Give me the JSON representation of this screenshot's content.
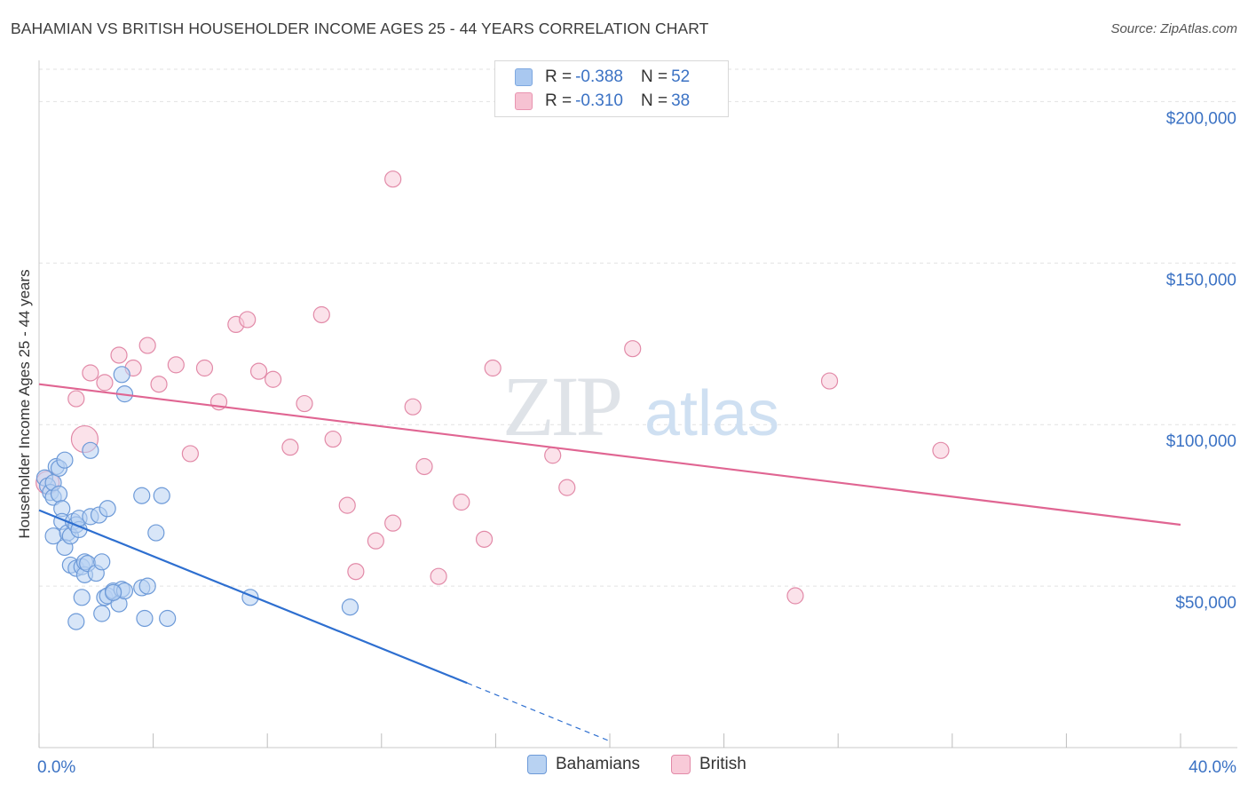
{
  "title": "BAHAMIAN VS BRITISH HOUSEHOLDER INCOME AGES 25 - 44 YEARS CORRELATION CHART",
  "source": "Source: ZipAtlas.com",
  "watermark": {
    "zip": "ZIP",
    "atlas": "atlas"
  },
  "legend": {
    "rows": [
      {
        "r_label": "R = ",
        "r_value": "-0.388",
        "n_label": "N = ",
        "n_value": "52",
        "color": "#a9c8f0",
        "border": "#7ea8e0"
      },
      {
        "r_label": "R = ",
        "r_value": "-0.310",
        "n_label": "N = ",
        "n_value": "38",
        "color": "#f6c2d2",
        "border": "#e994b0"
      }
    ]
  },
  "bottom_legend": [
    {
      "label": "Bahamians",
      "color": "#b8d2f2",
      "border": "#6d9ad8"
    },
    {
      "label": "British",
      "color": "#f8cad8",
      "border": "#e28aa8"
    }
  ],
  "chart_data": {
    "type": "scatter",
    "title": "BAHAMIAN VS BRITISH HOUSEHOLDER INCOME AGES 25 - 44 YEARS CORRELATION CHART",
    "xlabel": "",
    "ylabel": "Householder Income Ages 25 - 44 years",
    "xlim": [
      0,
      40
    ],
    "ylim": [
      0,
      210000
    ],
    "x_tick_labels": [
      "0.0%",
      "40.0%"
    ],
    "x_tick_values": [
      0,
      40
    ],
    "y_tick_labels": [
      "$50,000",
      "$100,000",
      "$150,000",
      "$200,000"
    ],
    "y_tick_values": [
      50000,
      100000,
      150000,
      200000
    ],
    "grid": true,
    "legend_position": "top-center",
    "series": [
      {
        "name": "Bahamians",
        "color": "#6d9ad8",
        "fill": "#b8d2f2",
        "points": [
          [
            0.2,
            83500
          ],
          [
            0.3,
            81000
          ],
          [
            0.4,
            79000
          ],
          [
            0.5,
            77500
          ],
          [
            0.5,
            82000
          ],
          [
            0.6,
            87000
          ],
          [
            0.7,
            86500
          ],
          [
            0.7,
            78500
          ],
          [
            0.8,
            74000
          ],
          [
            0.8,
            70000
          ],
          [
            0.9,
            62000
          ],
          [
            0.5,
            65500
          ],
          [
            0.9,
            89000
          ],
          [
            1.0,
            66500
          ],
          [
            1.1,
            56500
          ],
          [
            1.1,
            65500
          ],
          [
            1.2,
            70000
          ],
          [
            1.3,
            55500
          ],
          [
            1.3,
            69000
          ],
          [
            1.4,
            67500
          ],
          [
            1.4,
            71000
          ],
          [
            1.5,
            46500
          ],
          [
            1.5,
            56000
          ],
          [
            1.6,
            53500
          ],
          [
            1.6,
            57500
          ],
          [
            1.7,
            57000
          ],
          [
            1.3,
            39000
          ],
          [
            1.8,
            71500
          ],
          [
            2.0,
            54000
          ],
          [
            1.8,
            92000
          ],
          [
            2.1,
            72000
          ],
          [
            2.2,
            57500
          ],
          [
            2.2,
            41500
          ],
          [
            2.3,
            46500
          ],
          [
            2.4,
            47000
          ],
          [
            2.4,
            74000
          ],
          [
            2.6,
            48500
          ],
          [
            2.8,
            44500
          ],
          [
            2.9,
            49000
          ],
          [
            3.0,
            48500
          ],
          [
            2.6,
            48000
          ],
          [
            3.6,
            49500
          ],
          [
            3.8,
            50000
          ],
          [
            3.7,
            40000
          ],
          [
            3.6,
            78000
          ],
          [
            4.1,
            66500
          ],
          [
            4.3,
            78000
          ],
          [
            4.5,
            40000
          ],
          [
            2.9,
            115500
          ],
          [
            3.0,
            109500
          ],
          [
            7.4,
            46500
          ],
          [
            10.9,
            43500
          ]
        ],
        "trend": {
          "x0": 0,
          "y0": 73500,
          "x1": 15,
          "y1": 20000,
          "dash_x1": 20,
          "dash_y1": 2000
        }
      },
      {
        "name": "British",
        "color": "#e28aa8",
        "fill": "#f8cad8",
        "points": [
          [
            0.3,
            82000
          ],
          [
            1.6,
            95500
          ],
          [
            1.3,
            108000
          ],
          [
            1.8,
            116000
          ],
          [
            2.3,
            113000
          ],
          [
            2.8,
            121500
          ],
          [
            3.3,
            117500
          ],
          [
            3.8,
            124500
          ],
          [
            4.2,
            112500
          ],
          [
            4.8,
            118500
          ],
          [
            5.3,
            91000
          ],
          [
            5.8,
            117500
          ],
          [
            6.3,
            107000
          ],
          [
            6.9,
            131000
          ],
          [
            7.3,
            132500
          ],
          [
            7.7,
            116500
          ],
          [
            8.2,
            114000
          ],
          [
            8.8,
            93000
          ],
          [
            9.3,
            106500
          ],
          [
            9.9,
            134000
          ],
          [
            10.3,
            95500
          ],
          [
            10.8,
            75000
          ],
          [
            11.1,
            54500
          ],
          [
            11.8,
            64000
          ],
          [
            12.4,
            69500
          ],
          [
            12.4,
            176000
          ],
          [
            13.1,
            105500
          ],
          [
            13.5,
            87000
          ],
          [
            14.0,
            53000
          ],
          [
            14.8,
            76000
          ],
          [
            15.6,
            64500
          ],
          [
            15.9,
            117500
          ],
          [
            18.0,
            90500
          ],
          [
            18.5,
            80500
          ],
          [
            20.8,
            123500
          ],
          [
            26.5,
            47000
          ],
          [
            27.7,
            113500
          ],
          [
            31.6,
            92000
          ]
        ],
        "trend": {
          "x0": 0,
          "y0": 112500,
          "x1": 40,
          "y1": 69000
        }
      }
    ]
  }
}
